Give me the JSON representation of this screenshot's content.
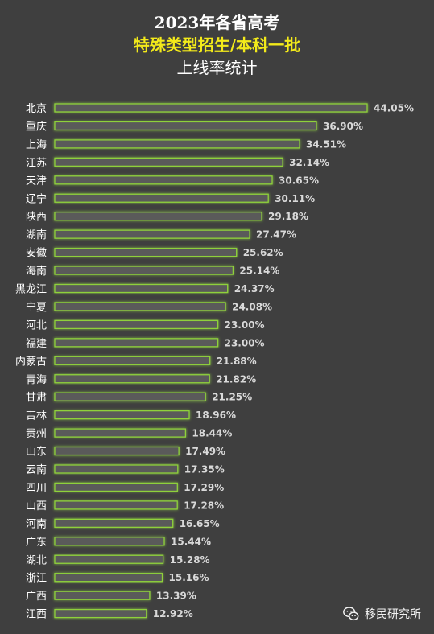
{
  "title": {
    "line1": "2023年各省高考",
    "line2": "特殊类型招生/本科一批",
    "line3": "上线率统计"
  },
  "watermark": {
    "text": "移民研究所",
    "icon": "wechat-icon"
  },
  "colors": {
    "background": "#3f3f3f",
    "bar_fill": "#5a5a5a",
    "bar_stroke": "#8fd13b",
    "label": "#d9d9d9",
    "title_accent": "#f3ea1a"
  },
  "chart_data": {
    "type": "bar",
    "orientation": "horizontal",
    "categories": [
      "北京",
      "重庆",
      "上海",
      "江苏",
      "天津",
      "辽宁",
      "陕西",
      "湖南",
      "安徽",
      "海南",
      "黑龙江",
      "宁夏",
      "河北",
      "福建",
      "内蒙古",
      "青海",
      "甘肃",
      "吉林",
      "贵州",
      "山东",
      "云南",
      "四川",
      "山西",
      "河南",
      "广东",
      "湖北",
      "浙江",
      "广西",
      "江西"
    ],
    "values": [
      44.05,
      36.9,
      34.51,
      32.14,
      30.65,
      30.11,
      29.18,
      27.47,
      25.62,
      25.14,
      24.37,
      24.08,
      23.0,
      23.0,
      21.88,
      21.82,
      21.25,
      18.96,
      18.44,
      17.49,
      17.35,
      17.29,
      17.28,
      16.65,
      15.44,
      15.28,
      15.16,
      13.39,
      12.92
    ],
    "data_labels": [
      "44.05%",
      "36.90%",
      "34.51%",
      "32.14%",
      "30.65%",
      "30.11%",
      "29.18%",
      "27.47%",
      "25.62%",
      "25.14%",
      "24.37%",
      "24.08%",
      "23.00%",
      "23.00%",
      "21.88%",
      "21.82%",
      "21.25%",
      "18.96%",
      "18.44%",
      "17.49%",
      "17.35%",
      "17.29%",
      "17.28%",
      "16.65%",
      "15.44%",
      "15.28%",
      "15.16%",
      "13.39%",
      "12.92%"
    ],
    "unit": "%",
    "xlim": [
      0,
      44.05
    ],
    "grid": false,
    "legend": "none"
  }
}
